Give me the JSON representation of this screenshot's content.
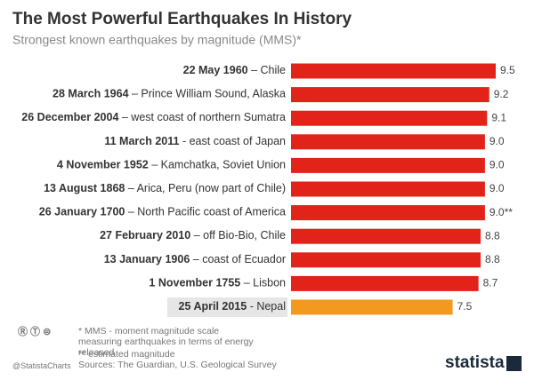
{
  "chart_data": {
    "type": "hbar",
    "title": "The Most Powerful Earthquakes In History",
    "subtitle": "Strongest known earthquakes by magnitude (MMS)*",
    "categories": [
      "22 May 1960 – Chile",
      "28 March 1964 – Prince William Sound, Alaska",
      "26 December 2004 – west coast of northern Sumatra",
      "11 March 2011 - east coast of Japan",
      "4 November 1952 – Kamchatka, Soviet Union",
      "13 August 1868 – Arica, Peru (now part of Chile)",
      "26 January 1700 – North Pacific coast of America",
      "27 February 2010 – off Bio-Bio, Chile",
      "13 January 1906 – coast of Ecuador",
      "1 November 1755 – Lisbon",
      "25 April 2015 - Nepal"
    ],
    "values": [
      9.5,
      9.2,
      9.1,
      9.0,
      9.0,
      9.0,
      9.0,
      8.8,
      8.8,
      8.7,
      7.5
    ],
    "value_labels": [
      "9.5",
      "9.2",
      "9.1",
      "9.0",
      "9.0",
      "9.0",
      "9.0**",
      "8.8",
      "8.8",
      "8.7",
      "7.5"
    ],
    "colors": [
      "#e2231a",
      "#e2231a",
      "#e2231a",
      "#e2231a",
      "#e2231a",
      "#e2231a",
      "#e2231a",
      "#e2231a",
      "#e2231a",
      "#e2231a",
      "#f39a1e"
    ],
    "xlim": [
      0,
      9.5
    ],
    "notes": [
      "*   MMS - moment magnitude scale measuring earthquakes in terms of energy released",
      "** estimated magnitude"
    ],
    "source": "Sources: The Guardian, U.S. Geological Survey",
    "credit": "@StatistaCharts",
    "brand": "statista"
  }
}
